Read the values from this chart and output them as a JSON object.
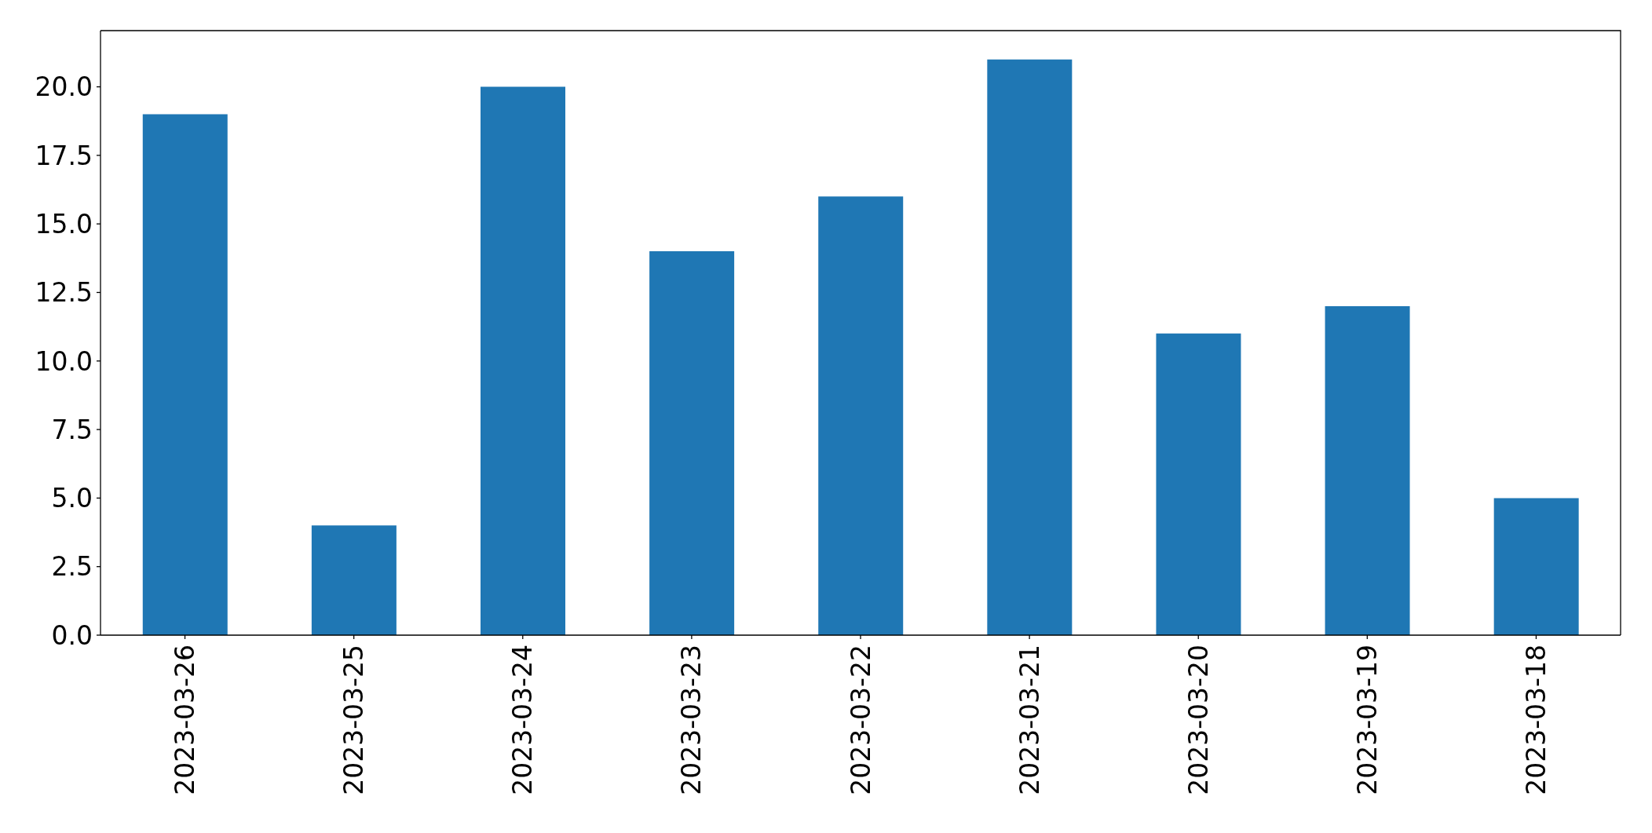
{
  "chart_data": {
    "type": "bar",
    "categories": [
      "2023-03-26",
      "2023-03-25",
      "2023-03-24",
      "2023-03-23",
      "2023-03-22",
      "2023-03-21",
      "2023-03-20",
      "2023-03-19",
      "2023-03-18"
    ],
    "values": [
      19,
      4,
      20,
      14,
      16,
      21,
      11,
      12,
      5
    ],
    "color": "#1f77b4",
    "ylim": [
      0,
      22.05
    ],
    "yticks": [
      {
        "value": 0,
        "label": "0.0"
      },
      {
        "value": 2.5,
        "label": "2.5"
      },
      {
        "value": 5,
        "label": "5.0"
      },
      {
        "value": 7.5,
        "label": "7.5"
      },
      {
        "value": 10,
        "label": "10.0"
      },
      {
        "value": 12.5,
        "label": "12.5"
      },
      {
        "value": 15,
        "label": "15.0"
      },
      {
        "value": 17.5,
        "label": "17.5"
      },
      {
        "value": 20,
        "label": "20.0"
      }
    ]
  }
}
